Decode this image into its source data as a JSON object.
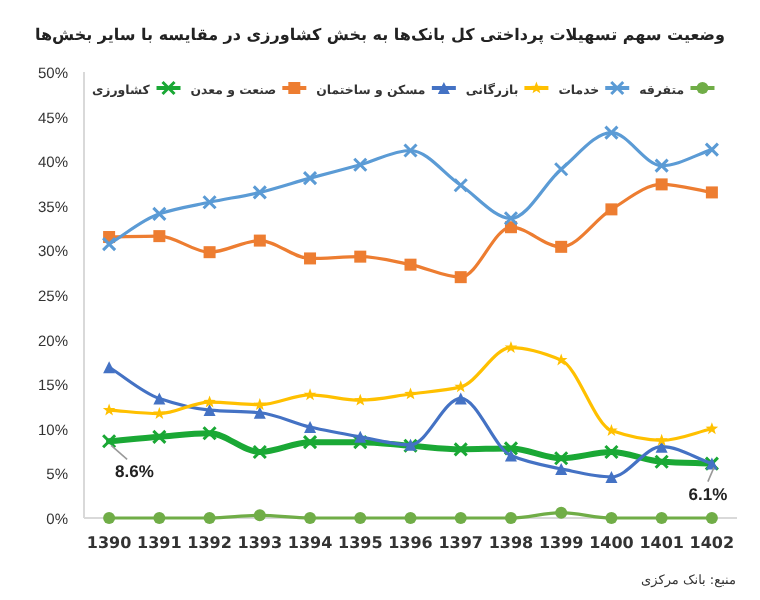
{
  "chart_data": {
    "type": "line",
    "title": "وضعیت سهم تسهیلات پرداختی کل بانک‌ها به بخش کشاورزی در مقایسه با سایر بخش‌ها",
    "categories": [
      "1390",
      "1391",
      "1392",
      "1393",
      "1394",
      "1395",
      "1396",
      "1397",
      "1398",
      "1399",
      "1400",
      "1401",
      "1402"
    ],
    "series": [
      {
        "name": "کشاورزی",
        "color": "#1aa835",
        "marker": "cross",
        "values": [
          8.6,
          9.1,
          9.5,
          7.4,
          8.5,
          8.5,
          8.1,
          7.7,
          7.8,
          6.7,
          7.4,
          6.3,
          6.1
        ]
      },
      {
        "name": "صنعت و معدن",
        "color": "#ed7d31",
        "marker": "square",
        "values": [
          31.5,
          31.6,
          29.8,
          31.1,
          29.1,
          29.3,
          28.4,
          27.0,
          32.6,
          30.4,
          34.6,
          37.4,
          36.5
        ]
      },
      {
        "name": "مسکن و ساختمان",
        "color": "#4472c4",
        "marker": "triangle",
        "values": [
          16.9,
          13.4,
          12.1,
          11.8,
          10.2,
          9.1,
          8.2,
          13.4,
          7.0,
          5.5,
          4.6,
          8.0,
          6.1
        ]
      },
      {
        "name": "بازرگانی",
        "color": "#ffc000",
        "marker": "star",
        "values": [
          12.1,
          11.7,
          13.0,
          12.7,
          13.8,
          13.2,
          13.9,
          14.7,
          19.1,
          17.7,
          9.8,
          8.7,
          10.0
        ]
      },
      {
        "name": "خدمات",
        "color": "#5b9bd5",
        "marker": "cross",
        "values": [
          30.7,
          34.1,
          35.4,
          36.5,
          38.1,
          39.6,
          41.2,
          37.3,
          33.6,
          39.1,
          43.2,
          39.5,
          41.3
        ]
      },
      {
        "name": "متفرقه",
        "color": "#70ad47",
        "marker": "circle",
        "values": [
          0,
          0,
          0,
          0.3,
          0,
          0,
          0,
          0,
          0,
          0.6,
          0,
          0,
          0
        ]
      }
    ],
    "ylim": [
      0,
      50
    ],
    "yticks": [
      {
        "value": 0,
        "label": "0%"
      },
      {
        "value": 5,
        "label": "5%"
      },
      {
        "value": 10,
        "label": "10%"
      },
      {
        "value": 15,
        "label": "15%"
      },
      {
        "value": 20,
        "label": "20%"
      },
      {
        "value": 25,
        "label": "25%"
      },
      {
        "value": 30,
        "label": "30%"
      },
      {
        "value": 35,
        "label": "35%"
      },
      {
        "value": 40,
        "label": "40%"
      },
      {
        "value": 45,
        "label": "45%"
      },
      {
        "value": 50,
        "label": "50%"
      }
    ],
    "grid": false,
    "legend": "top",
    "annotations": [
      {
        "text": "8.6%",
        "x": "1390",
        "y": 8.6
      },
      {
        "text": "6.1%",
        "x": "1402",
        "y": 6.1
      },
      "منبع: بانک مرکزی"
    ]
  }
}
